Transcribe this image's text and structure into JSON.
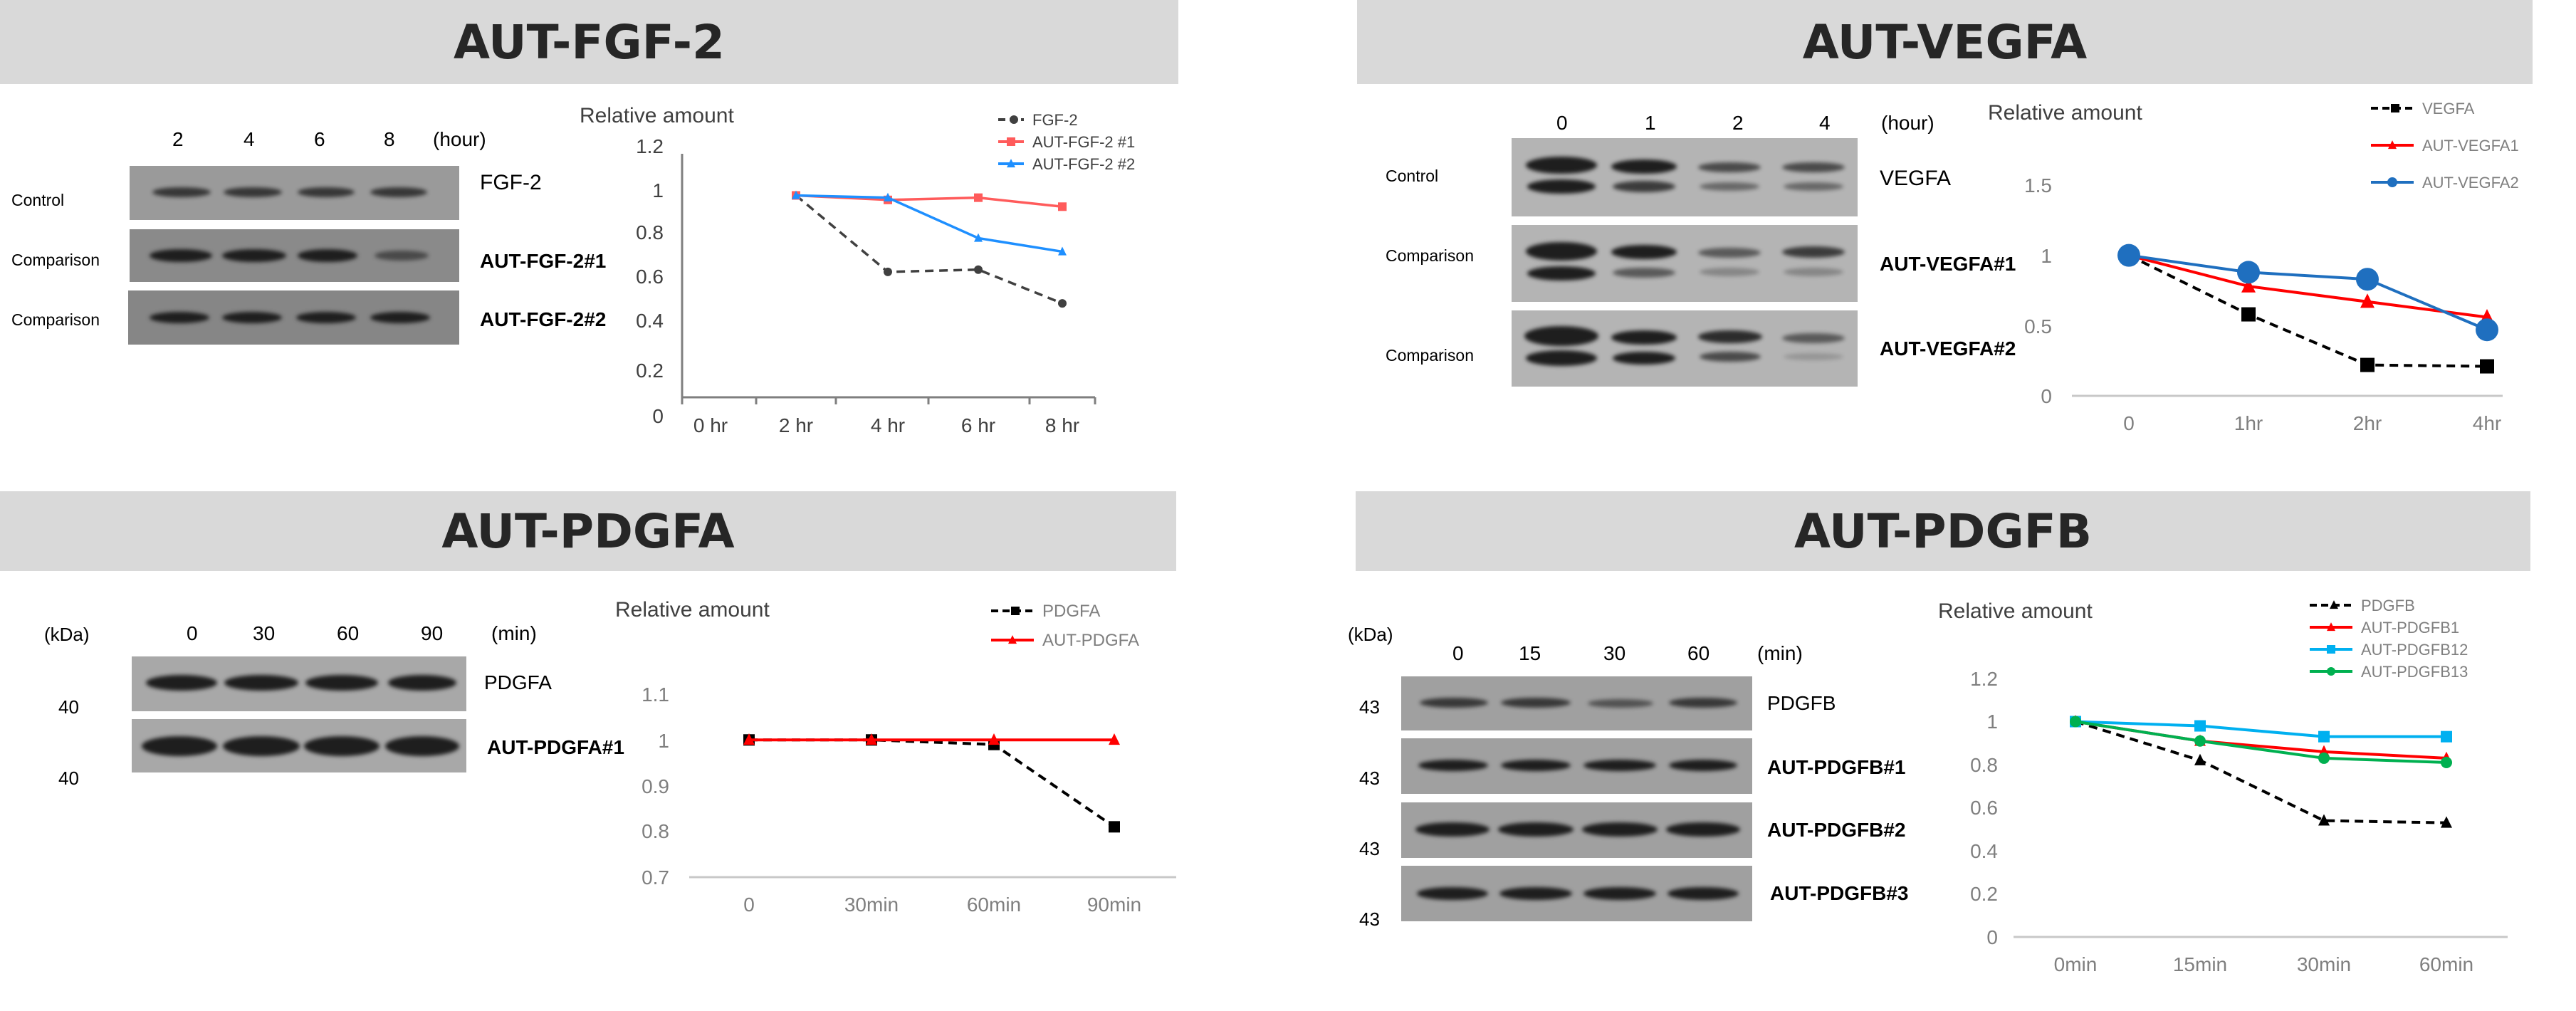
{
  "panels": [
    {
      "id": "fgf2",
      "title": "AUT-FGF-2",
      "blot": {
        "unit_label": "(hour)",
        "times": [
          "2",
          "4",
          "6",
          "8"
        ],
        "left_labels": [
          "Control",
          "Comparison",
          "Comparison"
        ],
        "right_labels": [
          "FGF-2",
          "AUT-FGF-2#1",
          "AUT-FGF-2#2"
        ],
        "kda": []
      },
      "chart_data": {
        "type": "line",
        "title": "Relative amount",
        "categories": [
          "0 hr",
          "2 hr",
          "4 hr",
          "6 hr",
          "8 hr"
        ],
        "yticks": [
          "1.2",
          "1",
          "0.8",
          "0.6",
          "0.4",
          "0.2",
          "0"
        ],
        "ylim": [
          0,
          1.2
        ],
        "legend_position": "top-right",
        "series": [
          {
            "name": "FGF-2",
            "color": "#404040",
            "dash": true,
            "marker": "circle",
            "values": [
              null,
              0.98,
              0.64,
              0.65,
              0.5
            ]
          },
          {
            "name": "AUT-FGF-2 #1",
            "color": "#ff5b5b",
            "dash": false,
            "marker": "square",
            "values": [
              null,
              0.98,
              0.96,
              0.97,
              0.93
            ]
          },
          {
            "name": "AUT-FGF-2 #2",
            "color": "#1e8fff",
            "dash": false,
            "marker": "triangle",
            "values": [
              null,
              0.98,
              0.97,
              0.79,
              0.73
            ]
          }
        ]
      }
    },
    {
      "id": "vegfa",
      "title": "AUT-VEGFA",
      "blot": {
        "unit_label": "(hour)",
        "times": [
          "0",
          "1",
          "2",
          "4"
        ],
        "left_labels": [
          "Control",
          "Comparison",
          "Comparison"
        ],
        "right_labels": [
          "VEGFA",
          "AUT-VEGFA#1",
          "AUT-VEGFA#2"
        ],
        "kda": []
      },
      "chart_data": {
        "type": "line",
        "title": "Relative amount",
        "categories": [
          "0",
          "1hr",
          "2hr",
          "4hr"
        ],
        "yticks": [
          "1.5",
          "1",
          "0.5",
          "0"
        ],
        "ylim": [
          0,
          1.5
        ],
        "legend_position": "top-right",
        "series": [
          {
            "name": "VEGFA",
            "color": "#000000",
            "dash": true,
            "marker": "square",
            "values": [
              1.0,
              0.58,
              0.22,
              0.21
            ]
          },
          {
            "name": "AUT-VEGFA1",
            "color": "#ff0000",
            "dash": false,
            "marker": "triangle",
            "values": [
              1.0,
              0.78,
              0.67,
              0.56
            ]
          },
          {
            "name": "AUT-VEGFA2",
            "color": "#1f6fbf",
            "dash": false,
            "marker": "circle",
            "values": [
              1.0,
              0.88,
              0.83,
              0.47
            ]
          }
        ]
      }
    },
    {
      "id": "pdgfa",
      "title": "AUT-PDGFA",
      "blot": {
        "unit_label": "(min)",
        "kda_header": "(kDa)",
        "times": [
          "0",
          "30",
          "60",
          "90"
        ],
        "left_labels": [],
        "right_labels": [
          "PDGFA",
          "AUT-PDGFA#1"
        ],
        "kda": [
          "40",
          "40"
        ]
      },
      "chart_data": {
        "type": "line",
        "title": "Relative amount",
        "categories": [
          "0",
          "30min",
          "60min",
          "90min"
        ],
        "yticks": [
          "1.1",
          "1",
          "0.9",
          "0.8",
          "0.7"
        ],
        "ylim": [
          0.7,
          1.1
        ],
        "legend_position": "top-right",
        "series": [
          {
            "name": "PDGFA",
            "color": "#000000",
            "dash": true,
            "marker": "square",
            "values": [
              1.0,
              1.0,
              0.99,
              0.81
            ]
          },
          {
            "name": "AUT-PDGFA",
            "color": "#ff0000",
            "dash": false,
            "marker": "triangle",
            "values": [
              1.0,
              1.0,
              1.0,
              1.0
            ]
          }
        ]
      }
    },
    {
      "id": "pdgfb",
      "title": "AUT-PDGFB",
      "blot": {
        "unit_label": "(min)",
        "kda_header": "(kDa)",
        "times": [
          "0",
          "15",
          "30",
          "60"
        ],
        "left_labels": [],
        "right_labels": [
          "PDGFB",
          "AUT-PDGFB#1",
          "AUT-PDGFB#2",
          "AUT-PDGFB#3"
        ],
        "kda": [
          "43",
          "43",
          "43",
          "43"
        ]
      },
      "chart_data": {
        "type": "line",
        "title": "Relative amount",
        "categories": [
          "0min",
          "15min",
          "30min",
          "60min"
        ],
        "yticks": [
          "1.2",
          "1",
          "0.8",
          "0.6",
          "0.4",
          "0.2",
          "0"
        ],
        "ylim": [
          0,
          1.2
        ],
        "legend_position": "top-right",
        "series": [
          {
            "name": "PDGFB",
            "color": "#000000",
            "dash": true,
            "marker": "triangle",
            "values": [
              1.0,
              0.82,
              0.54,
              0.53
            ]
          },
          {
            "name": "AUT-PDGFB1",
            "color": "#ff0000",
            "dash": false,
            "marker": "triangle",
            "values": [
              1.0,
              0.91,
              0.86,
              0.83
            ]
          },
          {
            "name": "AUT-PDGFB12",
            "color": "#00b0f0",
            "dash": false,
            "marker": "square",
            "values": [
              1.0,
              0.98,
              0.93,
              0.93
            ]
          },
          {
            "name": "AUT-PDGFB13",
            "color": "#00b050",
            "dash": false,
            "marker": "circle",
            "values": [
              1.0,
              0.91,
              0.83,
              0.81
            ]
          }
        ]
      }
    }
  ]
}
